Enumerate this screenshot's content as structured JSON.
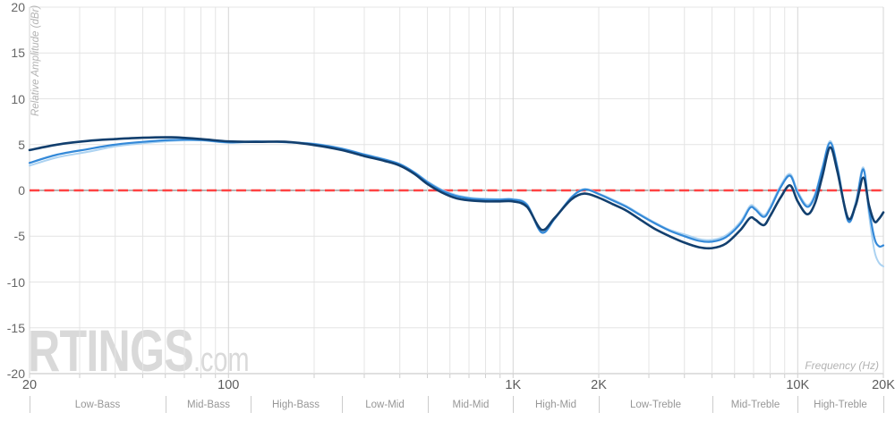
{
  "watermark": {
    "brand": "RTINGS",
    "suffix": ".com"
  },
  "chart_data": {
    "type": "line",
    "xlabel": "Frequency (Hz)",
    "ylabel": "Relative Amplitude (dBr)",
    "x_scale": "log",
    "xlim": [
      20,
      20000
    ],
    "ylim": [
      -20,
      20
    ],
    "grid": true,
    "legend": "none",
    "y_ticks": [
      20,
      15,
      10,
      5,
      0,
      -5,
      -10,
      -15,
      -20
    ],
    "x_tick_labels": [
      {
        "f": 20,
        "label": "20"
      },
      {
        "f": 100,
        "label": "100"
      },
      {
        "f": 1000,
        "label": "1K"
      },
      {
        "f": 2000,
        "label": "2K"
      },
      {
        "f": 10000,
        "label": "10K"
      },
      {
        "f": 20000,
        "label": "20K"
      }
    ],
    "x_gridlines": [
      20,
      30,
      40,
      50,
      60,
      70,
      80,
      90,
      100,
      200,
      300,
      400,
      500,
      600,
      700,
      800,
      900,
      1000,
      2000,
      3000,
      4000,
      5000,
      6000,
      7000,
      8000,
      9000,
      10000,
      20000
    ],
    "x_gridlines_major": [
      100,
      1000,
      10000
    ],
    "zero_line": {
      "value": 0,
      "dash_color": "#ff4242",
      "base_color": "#8a8a8a"
    },
    "grid_colors": {
      "minor": "#e4e4e4",
      "major": "#d5d5d5",
      "axis": "#c2c2c2",
      "tick_stub": "#cfcfcf"
    },
    "bands": [
      {
        "label": "Low-Bass",
        "from": 20,
        "to": 60
      },
      {
        "label": "Mid-Bass",
        "from": 60,
        "to": 120
      },
      {
        "label": "High-Bass",
        "from": 120,
        "to": 250
      },
      {
        "label": "Low-Mid",
        "from": 250,
        "to": 500
      },
      {
        "label": "Mid-Mid",
        "from": 500,
        "to": 1000
      },
      {
        "label": "High-Mid",
        "from": 1000,
        "to": 2000
      },
      {
        "label": "Low-Treble",
        "from": 2000,
        "to": 5000
      },
      {
        "label": "Mid-Treble",
        "from": 5000,
        "to": 10000
      },
      {
        "label": "High-Treble",
        "from": 10000,
        "to": 20000
      }
    ],
    "series": [
      {
        "name": "trace-pale-blue",
        "color": "#abd2f1",
        "width": 2.0,
        "points": [
          [
            20,
            2.7
          ],
          [
            25,
            3.6
          ],
          [
            32,
            4.2
          ],
          [
            40,
            4.8
          ],
          [
            50,
            5.15
          ],
          [
            63,
            5.4
          ],
          [
            80,
            5.45
          ],
          [
            100,
            5.2
          ],
          [
            125,
            5.3
          ],
          [
            160,
            5.3
          ],
          [
            200,
            5.1
          ],
          [
            250,
            4.6
          ],
          [
            300,
            3.95
          ],
          [
            355,
            3.4
          ],
          [
            400,
            2.9
          ],
          [
            450,
            2.0
          ],
          [
            500,
            1.0
          ],
          [
            560,
            0.1
          ],
          [
            630,
            -0.5
          ],
          [
            710,
            -0.8
          ],
          [
            800,
            -0.9
          ],
          [
            900,
            -0.95
          ],
          [
            1000,
            -0.95
          ],
          [
            1120,
            -1.5
          ],
          [
            1260,
            -4.5
          ],
          [
            1400,
            -3.0
          ],
          [
            1600,
            -0.75
          ],
          [
            1780,
            0.15
          ],
          [
            2000,
            -0.35
          ],
          [
            2240,
            -1.0
          ],
          [
            2500,
            -1.7
          ],
          [
            2800,
            -2.6
          ],
          [
            3150,
            -3.5
          ],
          [
            3550,
            -4.3
          ],
          [
            4000,
            -4.8
          ],
          [
            4500,
            -5.3
          ],
          [
            5000,
            -5.4
          ],
          [
            5600,
            -4.9
          ],
          [
            6300,
            -3.4
          ],
          [
            6800,
            -1.7
          ],
          [
            7100,
            -1.9
          ],
          [
            7600,
            -2.7
          ],
          [
            8000,
            -1.8
          ],
          [
            8700,
            0.5
          ],
          [
            9400,
            1.8
          ],
          [
            10000,
            -0.1
          ],
          [
            10800,
            -1.6
          ],
          [
            11500,
            -0.4
          ],
          [
            12200,
            2.5
          ],
          [
            13000,
            5.4
          ],
          [
            13800,
            2.6
          ],
          [
            15000,
            -3.1
          ],
          [
            16000,
            -1.2
          ],
          [
            17000,
            2.5
          ],
          [
            17800,
            -2.6
          ],
          [
            18600,
            -6.6
          ],
          [
            19300,
            -7.9
          ],
          [
            20000,
            -8.3
          ]
        ]
      },
      {
        "name": "trace-light-blue",
        "color": "#3489d8",
        "width": 2.2,
        "points": [
          [
            20,
            3.0
          ],
          [
            25,
            3.9
          ],
          [
            32,
            4.5
          ],
          [
            40,
            5.0
          ],
          [
            50,
            5.3
          ],
          [
            63,
            5.5
          ],
          [
            80,
            5.5
          ],
          [
            100,
            5.25
          ],
          [
            125,
            5.35
          ],
          [
            160,
            5.25
          ],
          [
            200,
            5.05
          ],
          [
            250,
            4.55
          ],
          [
            300,
            3.9
          ],
          [
            355,
            3.35
          ],
          [
            400,
            2.85
          ],
          [
            450,
            1.95
          ],
          [
            500,
            0.9
          ],
          [
            560,
            0.0
          ],
          [
            630,
            -0.6
          ],
          [
            710,
            -0.9
          ],
          [
            800,
            -1.0
          ],
          [
            900,
            -1.0
          ],
          [
            1000,
            -1.0
          ],
          [
            1120,
            -1.6
          ],
          [
            1260,
            -4.6
          ],
          [
            1400,
            -3.1
          ],
          [
            1600,
            -0.8
          ],
          [
            1780,
            0.1
          ],
          [
            2000,
            -0.4
          ],
          [
            2240,
            -1.1
          ],
          [
            2500,
            -1.8
          ],
          [
            2800,
            -2.7
          ],
          [
            3150,
            -3.6
          ],
          [
            3550,
            -4.4
          ],
          [
            4000,
            -5.0
          ],
          [
            4500,
            -5.5
          ],
          [
            5000,
            -5.6
          ],
          [
            5600,
            -5.1
          ],
          [
            6300,
            -3.6
          ],
          [
            6800,
            -1.9
          ],
          [
            7100,
            -2.1
          ],
          [
            7600,
            -2.9
          ],
          [
            8000,
            -2.0
          ],
          [
            8700,
            0.3
          ],
          [
            9400,
            1.6
          ],
          [
            10000,
            -0.3
          ],
          [
            10800,
            -1.8
          ],
          [
            11500,
            -0.6
          ],
          [
            12200,
            2.3
          ],
          [
            13000,
            5.2
          ],
          [
            13800,
            2.4
          ],
          [
            15000,
            -3.3
          ],
          [
            16000,
            -1.5
          ],
          [
            17000,
            2.3
          ],
          [
            17800,
            -2.0
          ],
          [
            18600,
            -5.2
          ],
          [
            19300,
            -6.1
          ],
          [
            20000,
            -6.0
          ]
        ]
      },
      {
        "name": "trace-dark-blue",
        "color": "#123f6e",
        "width": 2.6,
        "points": [
          [
            20,
            4.4
          ],
          [
            25,
            5.0
          ],
          [
            32,
            5.4
          ],
          [
            40,
            5.6
          ],
          [
            50,
            5.75
          ],
          [
            63,
            5.8
          ],
          [
            80,
            5.6
          ],
          [
            100,
            5.35
          ],
          [
            125,
            5.3
          ],
          [
            160,
            5.3
          ],
          [
            200,
            4.95
          ],
          [
            250,
            4.4
          ],
          [
            300,
            3.75
          ],
          [
            355,
            3.2
          ],
          [
            400,
            2.7
          ],
          [
            450,
            1.8
          ],
          [
            500,
            0.7
          ],
          [
            560,
            -0.2
          ],
          [
            630,
            -0.85
          ],
          [
            710,
            -1.1
          ],
          [
            800,
            -1.2
          ],
          [
            900,
            -1.2
          ],
          [
            1000,
            -1.2
          ],
          [
            1120,
            -1.8
          ],
          [
            1260,
            -4.3
          ],
          [
            1400,
            -3.0
          ],
          [
            1600,
            -1.0
          ],
          [
            1780,
            -0.35
          ],
          [
            2000,
            -0.8
          ],
          [
            2240,
            -1.5
          ],
          [
            2500,
            -2.2
          ],
          [
            2800,
            -3.2
          ],
          [
            3150,
            -4.2
          ],
          [
            3550,
            -5.0
          ],
          [
            4000,
            -5.7
          ],
          [
            4500,
            -6.2
          ],
          [
            5000,
            -6.3
          ],
          [
            5600,
            -5.8
          ],
          [
            6300,
            -4.3
          ],
          [
            6800,
            -3.0
          ],
          [
            7100,
            -3.2
          ],
          [
            7600,
            -3.8
          ],
          [
            8000,
            -2.8
          ],
          [
            8700,
            -0.8
          ],
          [
            9400,
            0.55
          ],
          [
            10000,
            -1.2
          ],
          [
            10800,
            -2.6
          ],
          [
            11500,
            -1.4
          ],
          [
            12200,
            1.5
          ],
          [
            13000,
            4.7
          ],
          [
            13800,
            2.0
          ],
          [
            15000,
            -3.0
          ],
          [
            16000,
            -1.6
          ],
          [
            17000,
            1.4
          ],
          [
            17800,
            -1.6
          ],
          [
            18600,
            -3.4
          ],
          [
            19300,
            -3.1
          ],
          [
            20000,
            -2.4
          ]
        ]
      }
    ]
  }
}
